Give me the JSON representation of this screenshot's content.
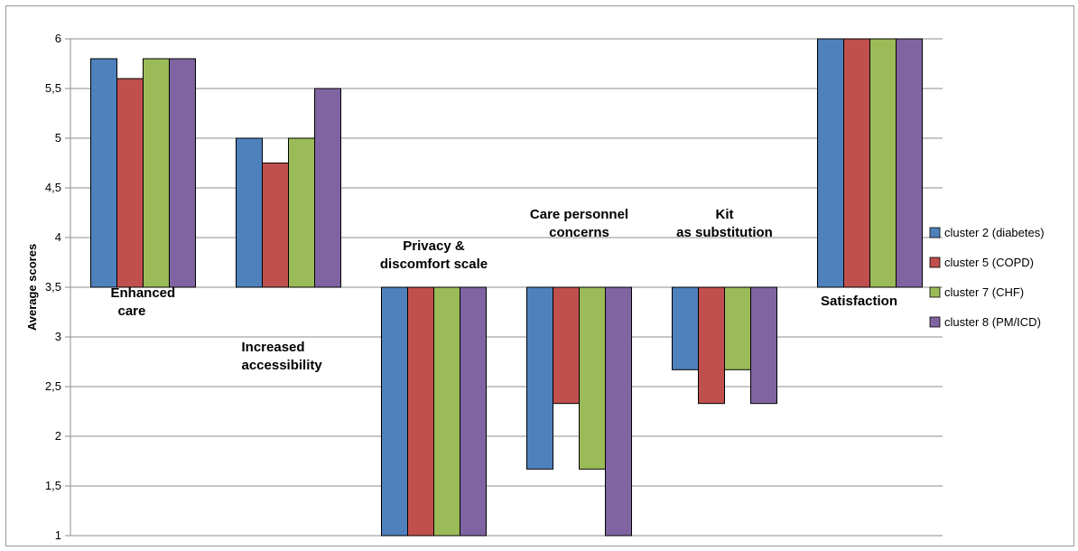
{
  "chart_data": {
    "type": "bar",
    "title": "",
    "ylabel": "Average scores",
    "xlabel": "",
    "ylim": [
      1,
      6
    ],
    "baseline": 3.5,
    "yticks": [
      "1",
      "1,5",
      "2",
      "2,5",
      "3",
      "3,5",
      "4",
      "4,5",
      "5",
      "5,5",
      "6"
    ],
    "ytick_values": [
      1,
      1.5,
      2,
      2.5,
      3,
      3.5,
      4,
      4.5,
      5,
      5.5,
      6
    ],
    "grid": true,
    "legend_position": "right",
    "categories": [
      [
        "Enhanced",
        "care"
      ],
      [
        "Increased",
        "accessibility"
      ],
      [
        "Privacy &",
        "discomfort scale"
      ],
      [
        "Care personnel",
        "concerns"
      ],
      [
        "Kit",
        "as substitution"
      ],
      [
        "Satisfaction"
      ]
    ],
    "series": [
      {
        "name": "cluster 2 (diabetes)",
        "color": "#4f81bd",
        "values": [
          5.8,
          5.0,
          1.0,
          1.67,
          2.67,
          6.0
        ]
      },
      {
        "name": "cluster 5 (COPD)",
        "color": "#c0504d",
        "values": [
          5.6,
          4.75,
          1.0,
          2.33,
          2.33,
          6.0
        ]
      },
      {
        "name": "cluster 7 (CHF)",
        "color": "#9bbb59",
        "values": [
          5.8,
          5.0,
          1.0,
          1.67,
          2.67,
          6.0
        ]
      },
      {
        "name": "cluster 8 (PM/ICD)",
        "color": "#8064a2",
        "values": [
          5.8,
          5.5,
          1.0,
          1.0,
          2.33,
          6.0
        ]
      }
    ]
  }
}
